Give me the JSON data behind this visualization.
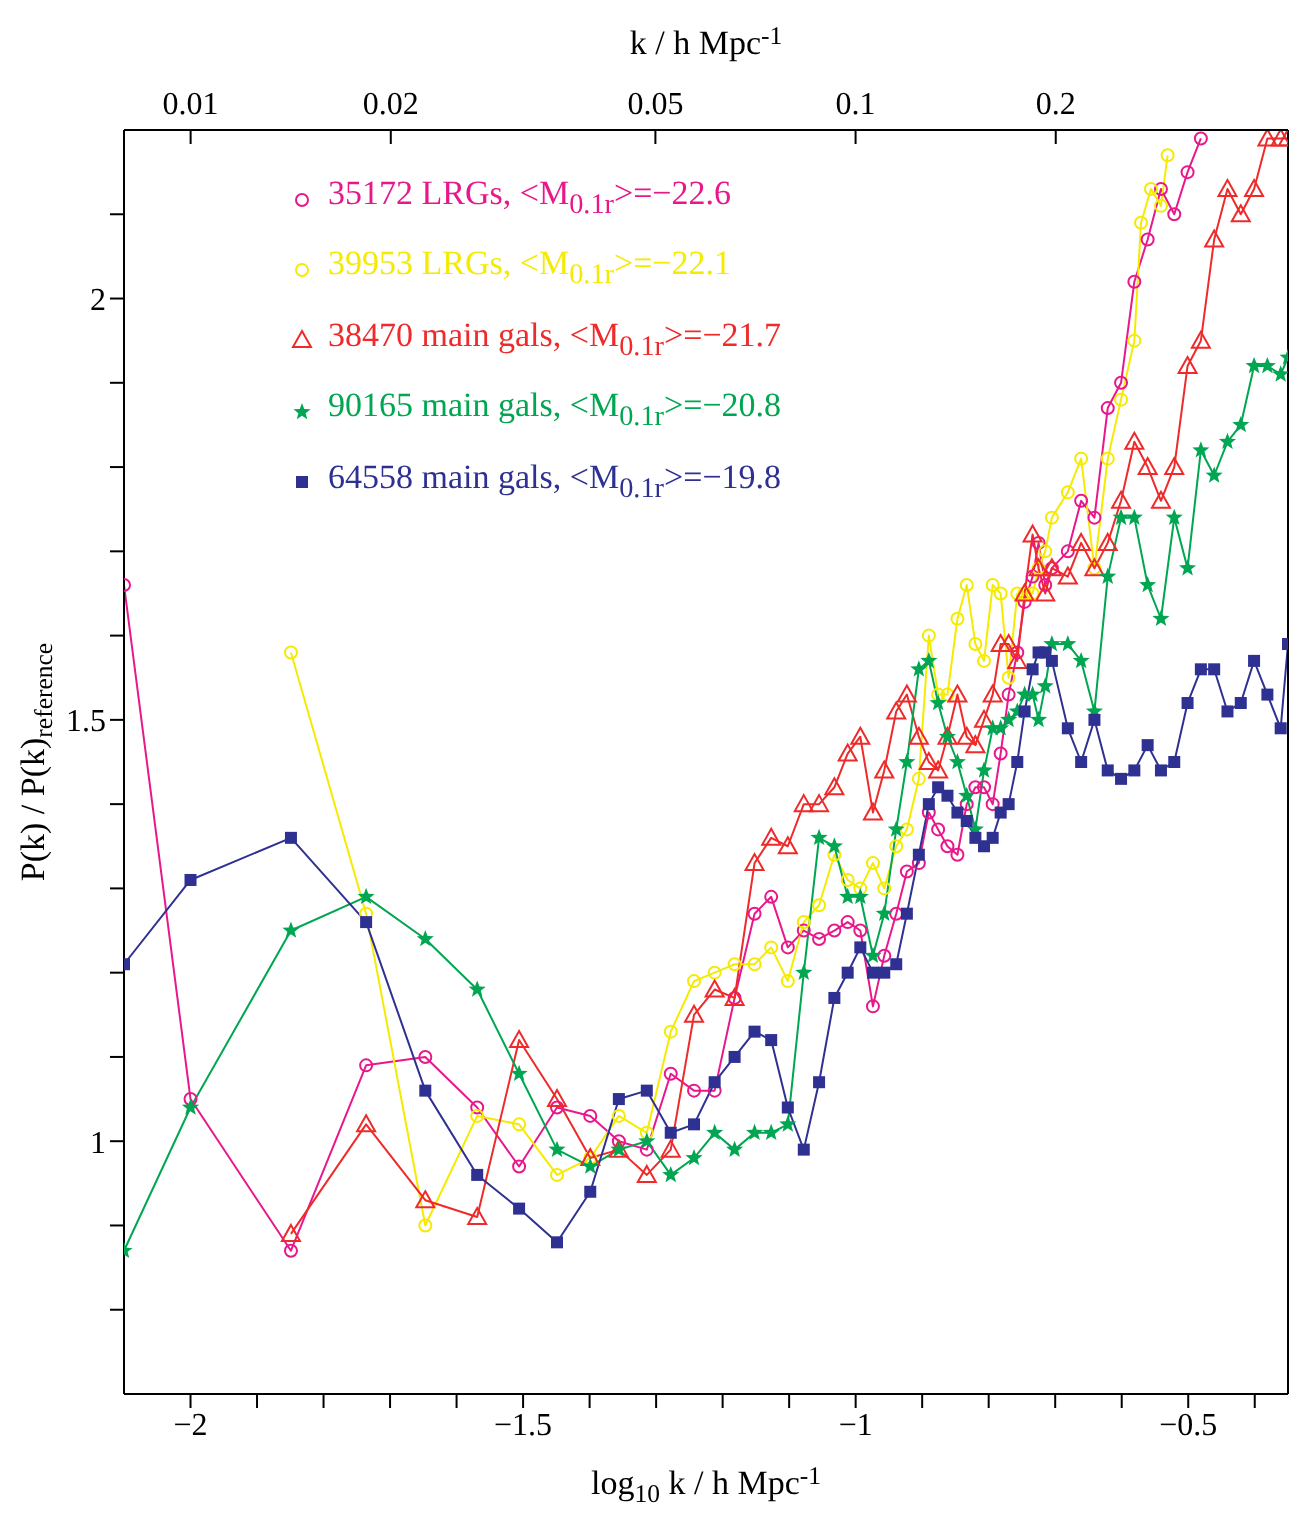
{
  "chart_data": {
    "type": "line",
    "xlabel": "log$_{10}$ k / h Mpc$^{-1}$",
    "ylabel": "P(k) / P(k)$_{reference}$",
    "x2label": "k / h Mpc$^{-1}$",
    "xlim": [
      -2.1,
      -0.35
    ],
    "xticks": [
      {
        "value": -2,
        "label": "−2"
      },
      {
        "value": -1.9,
        "label": null
      },
      {
        "value": -1.8,
        "label": null
      },
      {
        "value": -1.7,
        "label": null
      },
      {
        "value": -1.6,
        "label": null
      },
      {
        "value": -1.5,
        "label": "−1.5"
      },
      {
        "value": -1.4,
        "label": null
      },
      {
        "value": -1.3,
        "label": null
      },
      {
        "value": -1.2,
        "label": null
      },
      {
        "value": -1.1,
        "label": null
      },
      {
        "value": -1,
        "label": "−1"
      },
      {
        "value": -0.9,
        "label": null
      },
      {
        "value": -0.8,
        "label": null
      },
      {
        "value": -0.7,
        "label": null
      },
      {
        "value": -0.6,
        "label": null
      },
      {
        "value": -0.5,
        "label": "−0.5"
      },
      {
        "value": -0.4,
        "label": null
      }
    ],
    "x2lim": [
      0.00794,
      0.447
    ],
    "x2ticks": [
      0.01,
      0.02,
      0.05,
      0.1,
      0.2
    ],
    "log": "x2",
    "ylim": [
      0.7,
      2.2
    ],
    "yticks": [
      {
        "value": 0.8,
        "label": null
      },
      {
        "value": 0.9,
        "label": null
      },
      1,
      {
        "value": 1.1,
        "label": null
      },
      {
        "value": 1.2,
        "label": null
      },
      {
        "value": 1.3,
        "label": null
      },
      {
        "value": 1.4,
        "label": null
      },
      1.5,
      {
        "value": 1.6,
        "label": null
      },
      {
        "value": 1.7,
        "label": null
      },
      {
        "value": 1.8,
        "label": null
      },
      {
        "value": 1.9,
        "label": null
      },
      2,
      {
        "value": 2.1,
        "label": null
      }
    ],
    "legend": "top left",
    "series": [
      {
        "name": "35172 LRGs, <M$_{0.1r}$>=−22.6",
        "color": "#e8188c",
        "marker": "circle",
        "x": [
          -2.1,
          -2.0,
          -1.849,
          -1.736,
          -1.647,
          -1.569,
          -1.506,
          -1.449,
          -1.399,
          -1.356,
          -1.314,
          -1.278,
          -1.243,
          -1.212,
          -1.182,
          -1.152,
          -1.127,
          -1.102,
          -1.078,
          -1.055,
          -1.032,
          -1.012,
          -0.993,
          -0.974,
          -0.957,
          -0.939,
          -0.923,
          -0.905,
          -0.89,
          -0.876,
          -0.862,
          -0.847,
          -0.833,
          -0.82,
          -0.807,
          -0.794,
          -0.782,
          -0.77,
          -0.757,
          -0.746,
          -0.734,
          -0.725,
          -0.715,
          -0.705,
          -0.681,
          -0.661,
          -0.641,
          -0.621,
          -0.601,
          -0.581,
          -0.561,
          -0.541,
          -0.521,
          -0.501,
          -0.481
        ],
        "values": [
          1.66,
          1.05,
          0.87,
          1.09,
          1.1,
          1.04,
          0.97,
          1.04,
          1.03,
          1.0,
          0.99,
          1.08,
          1.06,
          1.06,
          1.17,
          1.27,
          1.29,
          1.23,
          1.25,
          1.24,
          1.25,
          1.26,
          1.25,
          1.16,
          1.22,
          1.27,
          1.32,
          1.33,
          1.39,
          1.37,
          1.35,
          1.34,
          1.4,
          1.42,
          1.42,
          1.4,
          1.46,
          1.53,
          1.58,
          1.64,
          1.67,
          1.71,
          1.66,
          1.68,
          1.7,
          1.76,
          1.74,
          1.87,
          1.9,
          2.02,
          2.07,
          2.13,
          2.1,
          2.15,
          2.19
        ]
      },
      {
        "name": "39953 LRGs, <M$_{0.1r}$>=−22.1",
        "color": "#f5eb00",
        "marker": "circle",
        "x": [
          -1.849,
          -1.736,
          -1.647,
          -1.569,
          -1.506,
          -1.449,
          -1.399,
          -1.356,
          -1.314,
          -1.278,
          -1.243,
          -1.212,
          -1.182,
          -1.152,
          -1.127,
          -1.102,
          -1.078,
          -1.055,
          -1.032,
          -1.012,
          -0.993,
          -0.974,
          -0.957,
          -0.939,
          -0.923,
          -0.905,
          -0.89,
          -0.876,
          -0.862,
          -0.847,
          -0.833,
          -0.82,
          -0.807,
          -0.794,
          -0.782,
          -0.77,
          -0.757,
          -0.746,
          -0.734,
          -0.725,
          -0.715,
          -0.705,
          -0.681,
          -0.661,
          -0.641,
          -0.621,
          -0.601,
          -0.581,
          -0.571,
          -0.556,
          -0.541,
          -0.531
        ],
        "values": [
          1.58,
          1.27,
          0.9,
          1.03,
          1.02,
          0.96,
          0.98,
          1.03,
          1.01,
          1.13,
          1.19,
          1.2,
          1.21,
          1.21,
          1.23,
          1.19,
          1.26,
          1.28,
          1.34,
          1.31,
          1.3,
          1.33,
          1.3,
          1.35,
          1.37,
          1.43,
          1.6,
          1.53,
          1.53,
          1.62,
          1.66,
          1.59,
          1.57,
          1.66,
          1.65,
          1.55,
          1.65,
          1.65,
          1.65,
          1.68,
          1.7,
          1.74,
          1.77,
          1.81,
          1.68,
          1.81,
          1.88,
          1.95,
          2.09,
          2.13,
          2.11,
          2.17
        ]
      },
      {
        "name": "38470 main gals, <M$_{0.1r}$>=−21.7",
        "color": "#ee2a2a",
        "marker": "triangle",
        "x": [
          -1.849,
          -1.736,
          -1.647,
          -1.569,
          -1.506,
          -1.449,
          -1.399,
          -1.356,
          -1.314,
          -1.278,
          -1.243,
          -1.212,
          -1.182,
          -1.152,
          -1.127,
          -1.102,
          -1.078,
          -1.055,
          -1.032,
          -1.012,
          -0.993,
          -0.974,
          -0.957,
          -0.939,
          -0.923,
          -0.905,
          -0.89,
          -0.876,
          -0.862,
          -0.847,
          -0.833,
          -0.82,
          -0.807,
          -0.794,
          -0.782,
          -0.77,
          -0.757,
          -0.746,
          -0.734,
          -0.725,
          -0.715,
          -0.705,
          -0.681,
          -0.661,
          -0.641,
          -0.621,
          -0.601,
          -0.581,
          -0.561,
          -0.541,
          -0.521,
          -0.501,
          -0.481,
          -0.461,
          -0.441,
          -0.421,
          -0.401,
          -0.381,
          -0.361,
          -0.35
        ],
        "values": [
          0.89,
          1.02,
          0.93,
          0.91,
          1.12,
          1.05,
          0.98,
          0.99,
          0.96,
          0.99,
          1.15,
          1.18,
          1.17,
          1.33,
          1.36,
          1.35,
          1.4,
          1.4,
          1.42,
          1.46,
          1.48,
          1.39,
          1.44,
          1.51,
          1.53,
          1.48,
          1.45,
          1.44,
          1.48,
          1.53,
          1.48,
          1.47,
          1.5,
          1.53,
          1.59,
          1.59,
          1.57,
          1.65,
          1.72,
          1.68,
          1.65,
          1.68,
          1.67,
          1.71,
          1.68,
          1.71,
          1.76,
          1.83,
          1.8,
          1.76,
          1.8,
          1.92,
          1.95,
          2.07,
          2.13,
          2.1,
          2.13,
          2.19,
          2.19,
          2.19
        ]
      },
      {
        "name": "90165 main gals, <M$_{0.1r}$>=−20.8",
        "color": "#00a651",
        "marker": "star",
        "x": [
          -2.1,
          -2.0,
          -1.849,
          -1.736,
          -1.647,
          -1.569,
          -1.506,
          -1.449,
          -1.399,
          -1.356,
          -1.314,
          -1.278,
          -1.243,
          -1.212,
          -1.182,
          -1.152,
          -1.127,
          -1.102,
          -1.078,
          -1.055,
          -1.032,
          -1.012,
          -0.993,
          -0.974,
          -0.957,
          -0.939,
          -0.923,
          -0.905,
          -0.89,
          -0.876,
          -0.862,
          -0.847,
          -0.833,
          -0.82,
          -0.807,
          -0.794,
          -0.782,
          -0.77,
          -0.757,
          -0.746,
          -0.734,
          -0.725,
          -0.715,
          -0.705,
          -0.681,
          -0.661,
          -0.641,
          -0.621,
          -0.601,
          -0.581,
          -0.561,
          -0.541,
          -0.521,
          -0.501,
          -0.481,
          -0.461,
          -0.441,
          -0.421,
          -0.401,
          -0.381,
          -0.361,
          -0.35
        ],
        "values": [
          0.87,
          1.04,
          1.25,
          1.29,
          1.24,
          1.18,
          1.08,
          0.99,
          0.97,
          0.99,
          1.0,
          0.96,
          0.98,
          1.01,
          0.99,
          1.01,
          1.01,
          1.02,
          1.2,
          1.36,
          1.35,
          1.29,
          1.29,
          1.22,
          1.27,
          1.37,
          1.45,
          1.56,
          1.57,
          1.52,
          1.48,
          1.45,
          1.41,
          1.37,
          1.44,
          1.49,
          1.49,
          1.5,
          1.51,
          1.53,
          1.53,
          1.5,
          1.54,
          1.59,
          1.59,
          1.57,
          1.51,
          1.67,
          1.74,
          1.74,
          1.66,
          1.62,
          1.74,
          1.68,
          1.82,
          1.79,
          1.83,
          1.85,
          1.92,
          1.92,
          1.91,
          1.93
        ]
      },
      {
        "name": "64558 main gals, <M$_{0.1r}$>=−19.8",
        "color": "#2e3192",
        "marker": "square",
        "x": [
          -2.1,
          -2.0,
          -1.849,
          -1.736,
          -1.647,
          -1.569,
          -1.506,
          -1.449,
          -1.399,
          -1.356,
          -1.314,
          -1.278,
          -1.243,
          -1.212,
          -1.182,
          -1.152,
          -1.127,
          -1.102,
          -1.078,
          -1.055,
          -1.032,
          -1.012,
          -0.993,
          -0.974,
          -0.957,
          -0.939,
          -0.923,
          -0.905,
          -0.89,
          -0.876,
          -0.862,
          -0.847,
          -0.833,
          -0.82,
          -0.807,
          -0.794,
          -0.782,
          -0.77,
          -0.757,
          -0.746,
          -0.734,
          -0.725,
          -0.715,
          -0.705,
          -0.681,
          -0.661,
          -0.641,
          -0.621,
          -0.601,
          -0.581,
          -0.561,
          -0.541,
          -0.521,
          -0.501,
          -0.481,
          -0.461,
          -0.441,
          -0.421,
          -0.401,
          -0.381,
          -0.361,
          -0.35
        ],
        "values": [
          1.21,
          1.31,
          1.36,
          1.26,
          1.06,
          0.96,
          0.92,
          0.88,
          0.94,
          1.05,
          1.06,
          1.01,
          1.02,
          1.07,
          1.1,
          1.13,
          1.12,
          1.04,
          0.99,
          1.07,
          1.17,
          1.2,
          1.23,
          1.2,
          1.2,
          1.21,
          1.27,
          1.34,
          1.4,
          1.42,
          1.41,
          1.39,
          1.38,
          1.36,
          1.35,
          1.36,
          1.39,
          1.4,
          1.45,
          1.51,
          1.56,
          1.58,
          1.58,
          1.57,
          1.49,
          1.45,
          1.5,
          1.44,
          1.43,
          1.44,
          1.47,
          1.44,
          1.45,
          1.52,
          1.56,
          1.56,
          1.51,
          1.52,
          1.57,
          1.53,
          1.49,
          1.59
        ]
      }
    ]
  }
}
